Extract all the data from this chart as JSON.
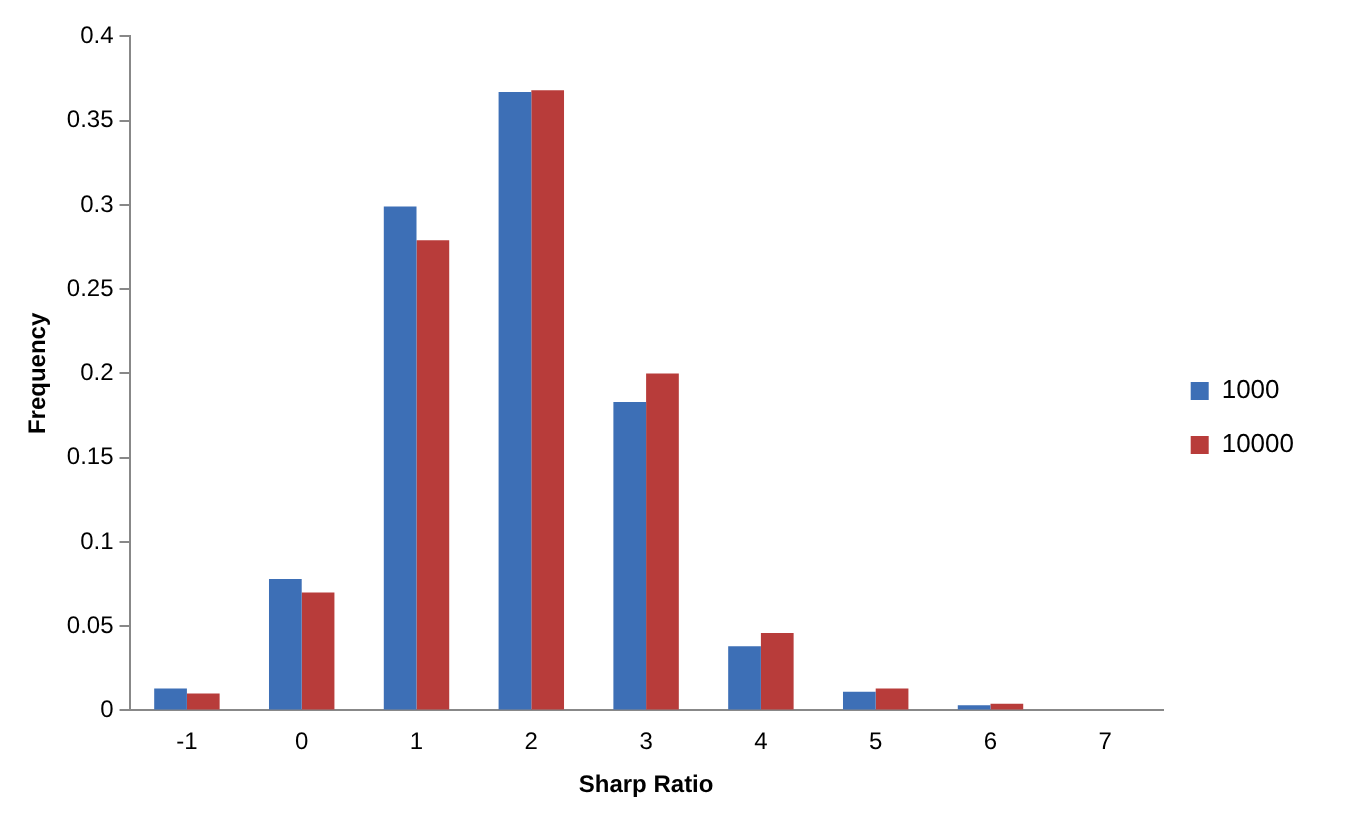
{
  "chart_data": {
    "type": "bar",
    "xlabel": "Sharp Ratio",
    "ylabel": "Frequency",
    "categories": [
      "-1",
      "0",
      "1",
      "2",
      "3",
      "4",
      "5",
      "6",
      "7"
    ],
    "series": [
      {
        "name": "1000",
        "color": "#3d6fb6",
        "values": [
          0.013,
          0.078,
          0.299,
          0.367,
          0.183,
          0.038,
          0.011,
          0.003,
          0
        ]
      },
      {
        "name": "10000",
        "color": "#b83c3a",
        "values": [
          0.01,
          0.07,
          0.279,
          0.368,
          0.2,
          0.046,
          0.013,
          0.004,
          0
        ]
      }
    ],
    "ylim": [
      0,
      0.4
    ],
    "yticks": [
      0,
      0.05,
      0.1,
      0.15,
      0.2,
      0.25,
      0.3,
      0.35,
      0.4
    ],
    "grid": false,
    "legend": "right"
  }
}
